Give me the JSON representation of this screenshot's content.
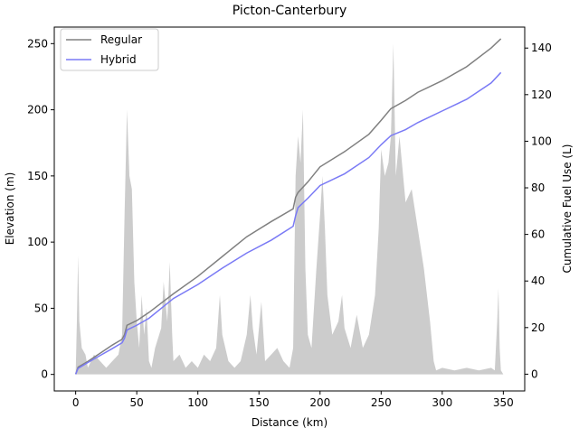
{
  "chart_data": {
    "type": "line",
    "title": "Picton-Canterbury",
    "xlabel": "Distance (km)",
    "ylabel": "Elevation (m)",
    "y2label": "Cumulative Fuel Use (L)",
    "xlim": [
      -17.5,
      367.5
    ],
    "xticks": [
      0,
      50,
      100,
      150,
      200,
      250,
      300,
      350
    ],
    "ylim": [
      -12.5,
      262.5
    ],
    "yticks": [
      0,
      50,
      100,
      150,
      200,
      250
    ],
    "y2lim": [
      -7.2,
      149
    ],
    "y2ticks": [
      0,
      20,
      40,
      60,
      80,
      100,
      120,
      140
    ],
    "legend": "upper left",
    "area": {
      "color": "#cccccc",
      "x": [
        0,
        1,
        2,
        3,
        5,
        8,
        10,
        15,
        20,
        25,
        30,
        35,
        38,
        40,
        42,
        44,
        46,
        48,
        50,
        52,
        54,
        56,
        58,
        60,
        62,
        65,
        70,
        72,
        75,
        77,
        79,
        80,
        85,
        90,
        95,
        100,
        105,
        110,
        115,
        118,
        120,
        125,
        130,
        135,
        140,
        143,
        145,
        148,
        150,
        152,
        155,
        160,
        165,
        170,
        175,
        178,
        180,
        182,
        184,
        186,
        188,
        190,
        193,
        197,
        200,
        202,
        204,
        206,
        210,
        215,
        218,
        220,
        225,
        230,
        235,
        240,
        245,
        248,
        250,
        253,
        256,
        258,
        260,
        262,
        265,
        270,
        275,
        280,
        285,
        290,
        293,
        295,
        300,
        310,
        320,
        330,
        340,
        343,
        345,
        346,
        347,
        348,
        350
      ],
      "values": [
        0,
        40,
        90,
        40,
        20,
        15,
        5,
        15,
        10,
        5,
        10,
        15,
        30,
        120,
        200,
        150,
        140,
        70,
        40,
        20,
        60,
        30,
        50,
        10,
        5,
        20,
        35,
        70,
        40,
        85,
        30,
        10,
        15,
        5,
        10,
        5,
        15,
        10,
        20,
        60,
        30,
        10,
        5,
        10,
        30,
        60,
        35,
        15,
        35,
        55,
        10,
        15,
        20,
        10,
        5,
        20,
        150,
        180,
        160,
        200,
        80,
        30,
        20,
        80,
        120,
        150,
        110,
        60,
        30,
        40,
        60,
        35,
        20,
        45,
        20,
        30,
        60,
        110,
        170,
        150,
        160,
        180,
        250,
        150,
        180,
        130,
        140,
        110,
        80,
        40,
        10,
        3,
        5,
        3,
        5,
        3,
        5,
        3,
        40,
        65,
        20,
        3,
        0
      ]
    },
    "x": [
      0,
      2,
      10,
      20,
      30,
      38,
      40,
      42,
      50,
      60,
      80,
      100,
      120,
      140,
      160,
      178,
      180,
      182,
      190,
      200,
      220,
      240,
      250,
      258,
      270,
      280,
      300,
      320,
      340,
      348
    ],
    "series": [
      {
        "name": "Regular",
        "color": "#808080",
        "axis": "y2",
        "values": [
          0,
          3,
          5.5,
          9,
          12.5,
          15,
          17,
          21,
          23,
          26.5,
          34.5,
          42,
          50.5,
          59,
          65.5,
          71,
          76,
          78,
          82.5,
          89,
          95.5,
          103,
          109,
          114,
          117.5,
          121,
          126,
          132,
          140,
          144
        ]
      },
      {
        "name": "Hybrid",
        "color": "#7a7af5",
        "axis": "y2",
        "values": [
          0,
          2.5,
          5,
          8,
          11,
          13.5,
          15.5,
          19,
          21,
          24,
          32.5,
          38.5,
          45.5,
          52,
          57.5,
          63.5,
          68,
          71.5,
          75.5,
          81,
          86,
          93,
          98.5,
          102.4,
          105,
          108,
          113,
          118,
          125,
          129.5
        ]
      }
    ]
  }
}
